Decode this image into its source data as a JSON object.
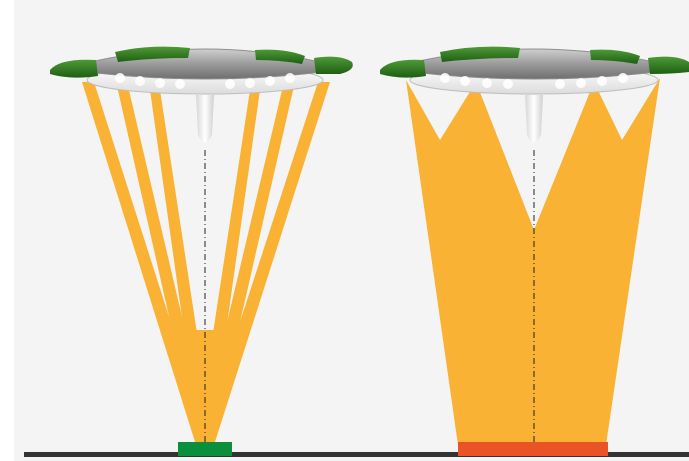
{
  "diagram": {
    "colors": {
      "background": "#f4f4f4",
      "beam": "#f9b233",
      "floor": "#333333",
      "focused_target": "#0b8f3c",
      "wide_target": "#ea5326",
      "lamp_housing": "#8e8e8e",
      "lamp_accent": "#2f7a1f",
      "axis_line": "#222222"
    },
    "lamps": [
      {
        "id": "left",
        "beam_mode": "focused",
        "icon": "surgical-light-icon"
      },
      {
        "id": "right",
        "beam_mode": "wide",
        "icon": "surgical-light-icon"
      }
    ]
  }
}
